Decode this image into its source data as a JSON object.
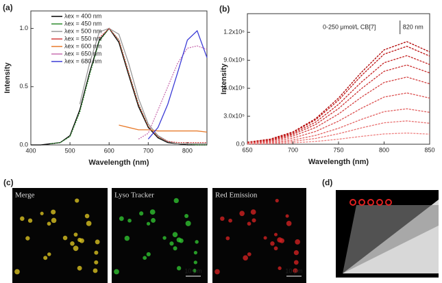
{
  "chart_data": [
    {
      "type": "line",
      "label": "(a)",
      "x_label": "Wavelength (nm)",
      "y_label": "Intensity",
      "x": [
        400,
        425,
        450,
        475,
        500,
        525,
        550,
        575,
        600,
        625,
        650,
        675,
        700,
        725,
        750,
        775,
        800,
        825,
        850
      ],
      "xlim": [
        400,
        850
      ],
      "xticks": [
        400,
        500,
        600,
        700,
        800
      ],
      "ylim": [
        0,
        1.15
      ],
      "yticks": [
        {
          "value": 0,
          "label": "0.0"
        },
        0.5,
        {
          "value": 1,
          "label": "1.0"
        }
      ],
      "legend": "upper left",
      "series": [
        {
          "name": "λex = 400 nm",
          "color": "#000000",
          "values": [
            0,
            0,
            0.01,
            0.02,
            0.08,
            0.3,
            0.62,
            0.9,
            1.0,
            0.88,
            0.6,
            0.33,
            0.15,
            0.06,
            0.02,
            0.01,
            0,
            0,
            0
          ]
        },
        {
          "name": "λex = 450 nm",
          "color": "#2e8b2e",
          "values": [
            null,
            null,
            0.01,
            0.02,
            0.07,
            0.28,
            0.6,
            0.89,
            1.0,
            0.9,
            0.62,
            0.35,
            0.16,
            0.07,
            0.03,
            0.01,
            0.01,
            0,
            0
          ]
        },
        {
          "name": "λex = 500 nm",
          "color": "#999999",
          "values": [
            null,
            null,
            null,
            null,
            null,
            0.35,
            0.7,
            0.97,
            1.0,
            0.95,
            0.7,
            0.4,
            0.18,
            0.08,
            0.03,
            0.01,
            0.01,
            0.01,
            0.01
          ]
        },
        {
          "name": "λex = 550 nm",
          "color": "#d23c3c",
          "values": [
            null,
            null,
            null,
            null,
            null,
            null,
            null,
            0.92,
            1.0,
            0.9,
            0.62,
            0.35,
            0.16,
            0.07,
            0.03,
            0.02,
            0.02,
            0.02,
            0.02
          ]
        },
        {
          "name": "λex = 600 nm",
          "color": "#e87a2a",
          "values": [
            null,
            null,
            null,
            null,
            null,
            null,
            null,
            null,
            null,
            0.17,
            0.15,
            0.13,
            0.13,
            0.12,
            0.12,
            0.12,
            0.12,
            0.12,
            0.11
          ]
        },
        {
          "name": "λex = 650 nm",
          "color": "#c96fb0",
          "values": [
            null,
            null,
            null,
            null,
            null,
            null,
            null,
            null,
            null,
            null,
            null,
            0.05,
            0.1,
            0.3,
            0.5,
            0.7,
            0.83,
            0.85,
            0.82
          ]
        },
        {
          "name": "λex = 680 nm",
          "color": "#3b3bd6",
          "values": [
            null,
            null,
            null,
            null,
            null,
            null,
            null,
            null,
            null,
            null,
            null,
            null,
            0.05,
            0.15,
            0.35,
            0.62,
            0.9,
            0.98,
            0.75
          ]
        }
      ]
    },
    {
      "type": "line",
      "label": "(b)",
      "x_label": "Wavelength (nm)",
      "y_label": "Intensity",
      "annotation": "0-250 μmol/L CB[7]",
      "peak_label": "820 nm",
      "x": [
        650,
        675,
        700,
        725,
        750,
        775,
        800,
        825,
        850
      ],
      "xlim": [
        650,
        850
      ],
      "xticks": [
        650,
        700,
        750,
        800,
        850
      ],
      "ylim": [
        0,
        1400000
      ],
      "yticks": [
        {
          "value": 0,
          "label": "0.0"
        },
        {
          "value": 300000,
          "label": "3.0x10⁵"
        },
        {
          "value": 600000,
          "label": "6.0x10⁵"
        },
        {
          "value": 900000,
          "label": "9.0x10⁵"
        },
        {
          "value": 1200000,
          "label": "1.2x10⁶"
        }
      ],
      "series": [
        {
          "color": "#b00000",
          "values": [
            22000,
            55000,
            132000,
            275000,
            495000,
            770000,
            1012000,
            1100000,
            990000
          ]
        },
        {
          "color": "#bc1010",
          "values": [
            21000,
            52500,
            126000,
            262500,
            472500,
            735000,
            966000,
            1050000,
            945000
          ]
        },
        {
          "color": "#c42020",
          "values": [
            19000,
            47500,
            114000,
            237500,
            427500,
            665000,
            874000,
            950000,
            855000
          ]
        },
        {
          "color": "#cc3030",
          "values": [
            17000,
            42500,
            102000,
            212500,
            382500,
            595000,
            782000,
            850000,
            765000
          ]
        },
        {
          "color": "#d44040",
          "values": [
            14400,
            36000,
            86400,
            180000,
            324000,
            504000,
            662400,
            720000,
            648000
          ]
        },
        {
          "color": "#dc5050",
          "values": [
            11000,
            27500,
            66000,
            137500,
            247500,
            385000,
            506000,
            550000,
            495000
          ]
        },
        {
          "color": "#e26060",
          "values": [
            7600,
            19000,
            45600,
            95000,
            171000,
            266000,
            349600,
            380000,
            342000
          ]
        },
        {
          "color": "#e87070",
          "values": [
            5000,
            12500,
            30000,
            62500,
            112500,
            175000,
            230000,
            250000,
            225000
          ]
        },
        {
          "color": "#ee8080",
          "values": [
            2400,
            6000,
            14400,
            30000,
            54000,
            84000,
            110400,
            120000,
            108000
          ]
        }
      ]
    }
  ],
  "images": {
    "label_c": "(c)",
    "label_d": "(d)",
    "panels": [
      {
        "title": "Merge"
      },
      {
        "title": "Lyso Tracker",
        "scale": "10 μm"
      },
      {
        "title": "Red Emission",
        "scale": "10 μm"
      }
    ]
  }
}
